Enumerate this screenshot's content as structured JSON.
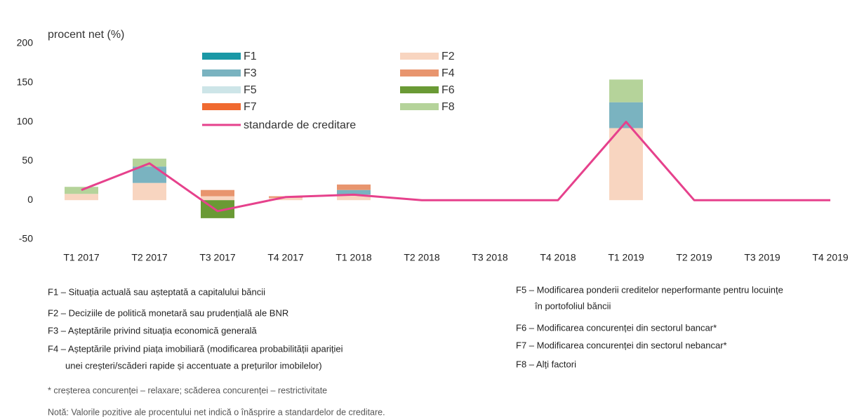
{
  "chart_data": {
    "type": "bar_line",
    "y_label": "procent net (%)",
    "categories": [
      "T1 2017",
      "T2 2017",
      "T3 2017",
      "T4 2017",
      "T1 2018",
      "T2 2018",
      "T3 2018",
      "T4 2018",
      "T1 2019",
      "T2 2019",
      "T3 2019",
      "T4 2019"
    ],
    "series": [
      {
        "name": "F1",
        "color": "#1a98a6",
        "values": [
          0,
          0,
          0,
          0,
          0,
          0,
          0,
          0,
          0,
          0,
          0,
          0
        ]
      },
      {
        "name": "F2",
        "color": "#f8d5c0",
        "values": [
          8,
          22,
          5,
          3,
          7,
          0,
          0,
          0,
          92,
          0,
          0,
          0
        ]
      },
      {
        "name": "F3",
        "color": "#7ab3c0",
        "values": [
          0,
          21,
          0,
          0,
          6,
          0,
          0,
          0,
          33,
          0,
          0,
          0
        ]
      },
      {
        "name": "F4",
        "color": "#e8956e",
        "values": [
          0,
          0,
          8,
          2,
          7,
          0,
          0,
          0,
          0,
          0,
          0,
          0
        ]
      },
      {
        "name": "F5",
        "color": "#cde5e8",
        "values": [
          0,
          0,
          0,
          0,
          0,
          0,
          0,
          0,
          0,
          0,
          0,
          0
        ]
      },
      {
        "name": "F6",
        "color": "#6a9a35",
        "values": [
          0,
          0,
          -23,
          0,
          0,
          0,
          0,
          0,
          0,
          0,
          0,
          0
        ]
      },
      {
        "name": "F7",
        "color": "#f06a30",
        "values": [
          0,
          0,
          0,
          0,
          0,
          0,
          0,
          0,
          0,
          0,
          0,
          0
        ]
      },
      {
        "name": "F8",
        "color": "#b5d39a",
        "values": [
          9,
          10,
          0,
          0,
          0,
          0,
          0,
          0,
          29,
          0,
          0,
          0
        ]
      },
      {
        "name": "standarde de creditare",
        "type": "line",
        "color": "#e6418c",
        "values": [
          13,
          47,
          -14,
          4,
          7,
          0,
          0,
          0,
          100,
          0,
          0,
          0
        ]
      }
    ],
    "ylim": [
      -50,
      200
    ],
    "yticks": [
      -50,
      0,
      50,
      100,
      150,
      200
    ],
    "grid": false,
    "notes_left": [
      "F1 – Situația actuală sau așteptată a capitalului băncii",
      "F2 – Deciziile de politică monetară sau prudențială ale BNR",
      "F3 – Așteptările privind situația economică generală",
      "F4 – Așteptările privind piața imobiliară (modificarea probabilității apariției",
      "unei creșteri/scăderi rapide și accentuate a prețurilor imobilelor)"
    ],
    "notes_right": [
      "F5 – Modificarea ponderii creditelor neperformante pentru locuințe",
      "în portofoliul băncii",
      "F6 – Modificarea concurenței din sectorul bancar*",
      "F7 – Modificarea concurenței din sectorul nebancar*",
      "F8 – Alți factori"
    ],
    "footnote": "* creșterea concurenței – relaxare; scăderea concurenței – restrictivitate",
    "note": "Notă: Valorile pozitive ale procentului net indică o înăsprire a standardelor de creditare."
  }
}
